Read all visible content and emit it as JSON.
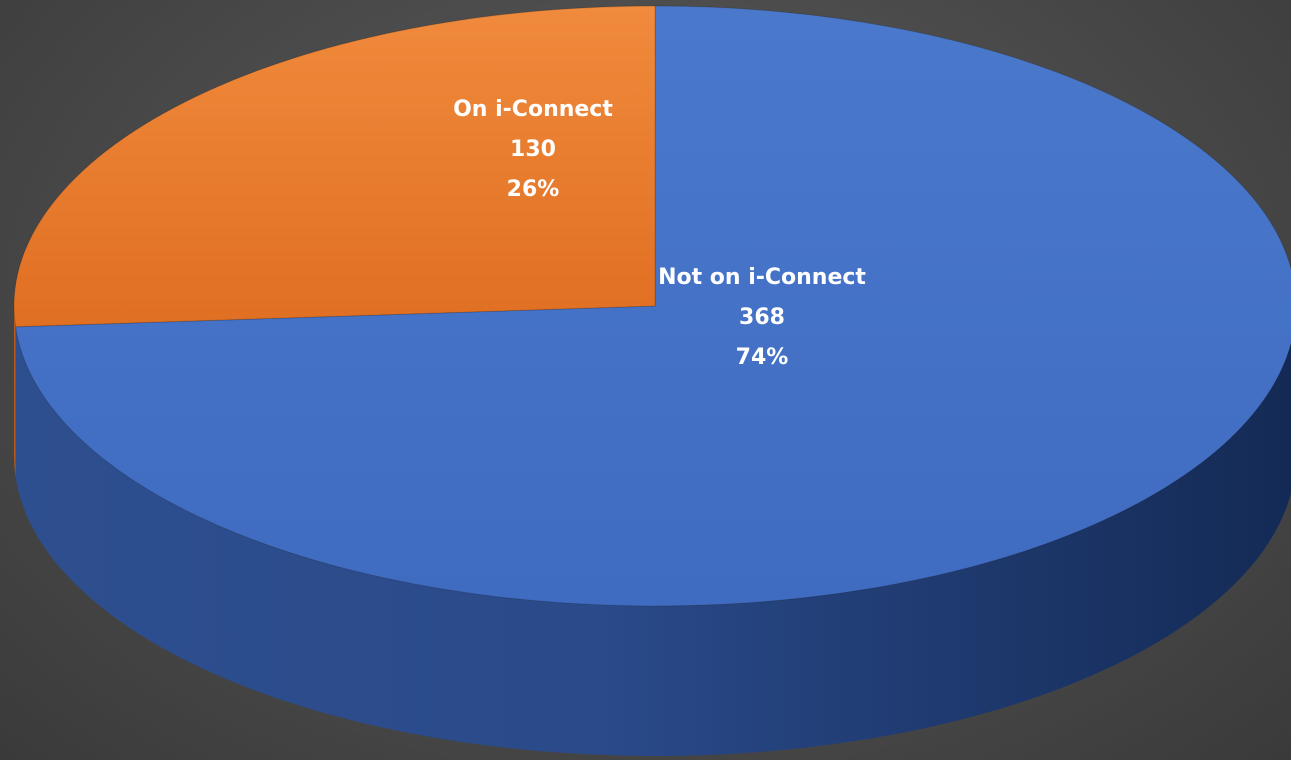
{
  "chart_data": {
    "type": "pie",
    "style": "3d",
    "slices": [
      {
        "label": "Not on i-Connect",
        "value": 368,
        "percent": "74%",
        "color": "#4472C4"
      },
      {
        "label": "On i-Connect",
        "value": 130,
        "percent": "26%",
        "color": "#ED7D31"
      }
    ],
    "legend": "none",
    "labels": "inside"
  },
  "colors": {
    "background": "#4a4a4a",
    "label_text": "#ffffff"
  }
}
